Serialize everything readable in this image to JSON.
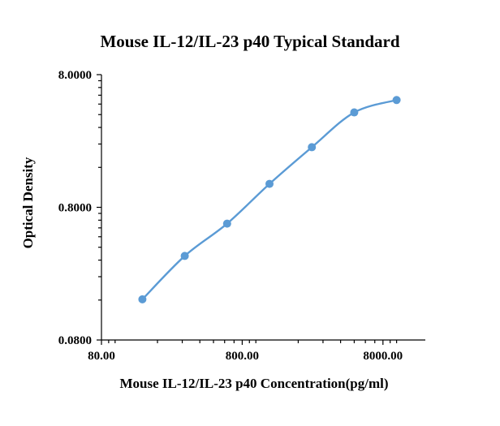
{
  "chart_data": {
    "type": "line",
    "title": "Mouse IL-12/IL-23 p40 Typical Standard",
    "xlabel": "Mouse IL-12/IL-23 p40 Concentration(pg/ml)",
    "ylabel": "Optical Density",
    "x_scale": "log",
    "y_scale": "log",
    "xlim": [
      80,
      16000
    ],
    "ylim": [
      0.08,
      8
    ],
    "x_ticks": [
      "80.00",
      "800.00",
      "8000.00"
    ],
    "y_ticks": [
      "0.0800",
      "0.8000",
      "8.0000"
    ],
    "grid": false,
    "legend": "none",
    "series": [
      {
        "color": "#5b9bd5",
        "x": [
          156.25,
          312.5,
          625,
          1250,
          2500,
          5000,
          10000
        ],
        "y": [
          0.162,
          0.344,
          0.603,
          1.202,
          2.271,
          4.154,
          5.15
        ]
      }
    ]
  }
}
